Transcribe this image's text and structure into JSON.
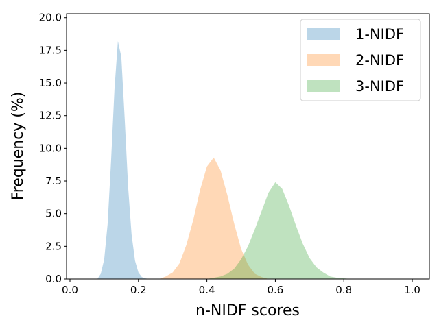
{
  "chart_data": {
    "type": "histogram",
    "xlabel": "n-NIDF scores",
    "ylabel": "Frequency (%)",
    "xlim": [
      -0.01,
      1.05
    ],
    "ylim": [
      0,
      20.3
    ],
    "xticks": [
      "0.0",
      "0.2",
      "0.4",
      "0.6",
      "0.8",
      "1.0"
    ],
    "yticks": [
      "0.0",
      "2.5",
      "5.0",
      "7.5",
      "10.0",
      "12.5",
      "15.0",
      "17.5",
      "20.0"
    ],
    "grid": false,
    "legend_position": "top-right",
    "series": [
      {
        "name": "1-NIDF",
        "color": "#1f77b4",
        "opacity": 0.3,
        "x": [
          0.08,
          0.09,
          0.1,
          0.11,
          0.12,
          0.13,
          0.14,
          0.15,
          0.16,
          0.17,
          0.18,
          0.19,
          0.2,
          0.21,
          0.22,
          0.23
        ],
        "y": [
          0.0,
          0.4,
          1.5,
          4.2,
          9.0,
          14.5,
          18.2,
          17.0,
          12.2,
          7.0,
          3.4,
          1.4,
          0.5,
          0.15,
          0.05,
          0.0
        ]
      },
      {
        "name": "2-NIDF",
        "color": "#ff7f0e",
        "opacity": 0.3,
        "x": [
          0.26,
          0.28,
          0.3,
          0.32,
          0.34,
          0.36,
          0.38,
          0.4,
          0.42,
          0.44,
          0.46,
          0.48,
          0.5,
          0.52,
          0.54,
          0.56,
          0.58
        ],
        "y": [
          0.0,
          0.2,
          0.5,
          1.2,
          2.6,
          4.5,
          6.8,
          8.6,
          9.3,
          8.3,
          6.4,
          4.2,
          2.3,
          1.1,
          0.4,
          0.15,
          0.0
        ]
      },
      {
        "name": "3-NIDF",
        "color": "#2ca02c",
        "opacity": 0.3,
        "x": [
          0.4,
          0.44,
          0.46,
          0.48,
          0.5,
          0.52,
          0.54,
          0.56,
          0.58,
          0.6,
          0.62,
          0.64,
          0.66,
          0.68,
          0.7,
          0.72,
          0.74,
          0.76,
          0.78,
          0.8,
          0.82
        ],
        "y": [
          0.0,
          0.2,
          0.4,
          0.8,
          1.5,
          2.5,
          3.8,
          5.2,
          6.6,
          7.4,
          6.9,
          5.6,
          4.1,
          2.7,
          1.6,
          0.9,
          0.5,
          0.2,
          0.1,
          0.05,
          0.0
        ]
      }
    ]
  }
}
